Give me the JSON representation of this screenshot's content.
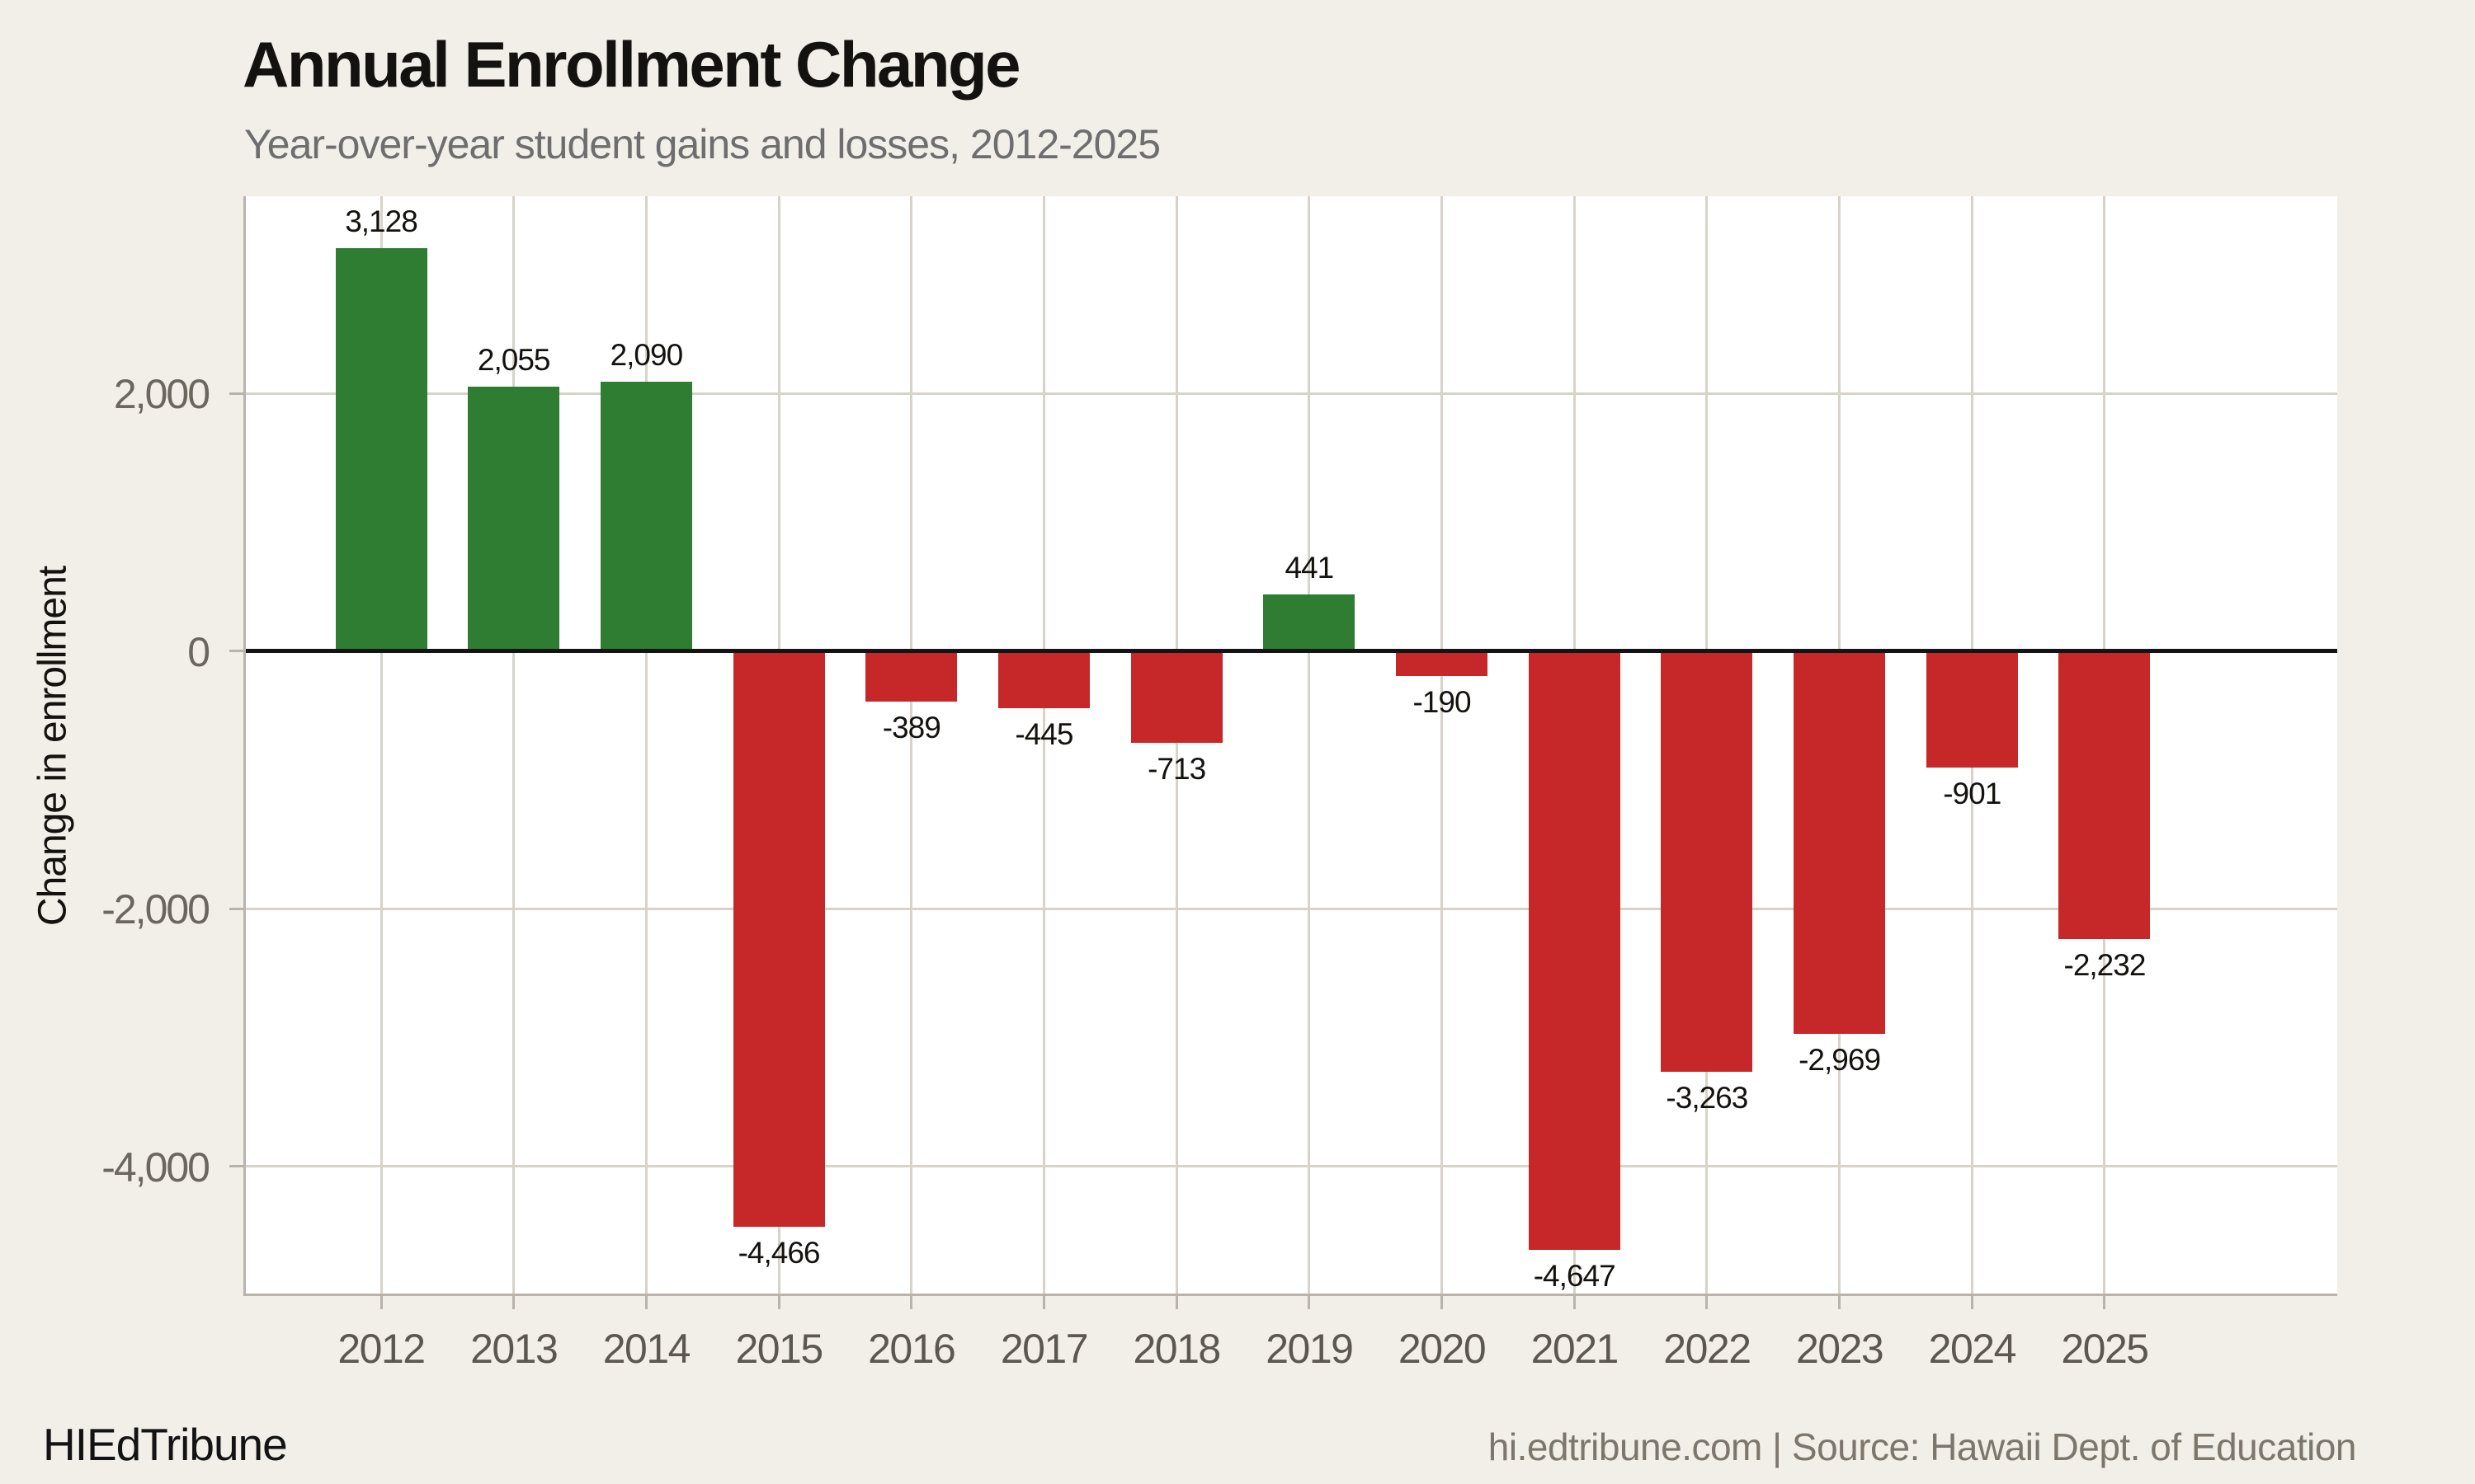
{
  "chart_data": {
    "type": "bar",
    "title": "Annual Enrollment Change",
    "subtitle": "Year-over-year student gains and losses, 2012-2025",
    "xlabel": "",
    "ylabel": "Change in enrollment",
    "categories": [
      "2012",
      "2013",
      "2014",
      "2015",
      "2016",
      "2017",
      "2018",
      "2019",
      "2020",
      "2021",
      "2022",
      "2023",
      "2024",
      "2025"
    ],
    "values": [
      3128,
      2055,
      2090,
      -4466,
      -389,
      -445,
      -713,
      441,
      -190,
      -4647,
      -3263,
      -2969,
      -901,
      -2232
    ],
    "labels": [
      "3,128",
      "2,055",
      "2,090",
      "-4,466",
      "-389",
      "-445",
      "-713",
      "441",
      "-190",
      "-4,647",
      "-3,263",
      "-2,969",
      "-901",
      "-2,232"
    ],
    "ylim": [
      -4987,
      3533
    ],
    "yticks": [
      {
        "value": 2000,
        "label": "2,000"
      },
      {
        "value": 0,
        "label": "0"
      },
      {
        "value": -2000,
        "label": "-2,000"
      },
      {
        "value": -4000,
        "label": "-4,000"
      }
    ],
    "grid": true,
    "legend": "none",
    "colors": {
      "positive": "#2e7d33",
      "negative": "#c62829"
    }
  },
  "footer": {
    "brand": "HIEdTribune",
    "source": "hi.edtribune.com | Source: Hawaii Dept. of Education"
  }
}
